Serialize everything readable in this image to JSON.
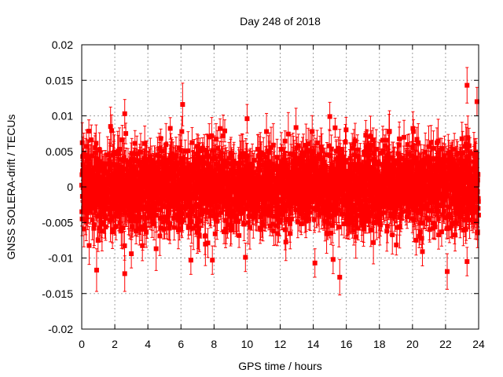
{
  "chart_data": {
    "type": "scatter",
    "title": "Day 248 of 2018",
    "xlabel": "GPS time / hours",
    "ylabel": "GNSS SOLERA-drift / TECUs",
    "xlim": [
      0,
      24
    ],
    "ylim": [
      -0.02,
      0.02
    ],
    "xticks": [
      0,
      2,
      4,
      6,
      8,
      10,
      12,
      14,
      16,
      18,
      20,
      22,
      24
    ],
    "xtick_labels": [
      "0",
      "2",
      "4",
      "6",
      "8",
      "10",
      "12",
      "14",
      "16",
      "18",
      "20",
      "22",
      "24"
    ],
    "yticks": [
      -0.02,
      -0.015,
      -0.01,
      -0.005,
      0,
      0.005,
      0.01,
      0.015,
      0.02
    ],
    "ytick_labels": [
      "-0.02",
      "-0.015",
      "-0.01",
      "-0.005",
      "0",
      "0.005",
      "0.01",
      "0.015",
      "0.02"
    ],
    "grid": true,
    "series_color": "#ff0000",
    "marker": "square",
    "error_bars": true,
    "noise_model": {
      "sample_interval_hours": 0.0083,
      "mean": 0.0,
      "std": 0.0028,
      "typical_error": 0.0022
    },
    "outliers": [
      {
        "x": 0.9,
        "y": -0.0117,
        "err": 0.003
      },
      {
        "x": 2.6,
        "y": -0.0122,
        "err": 0.0025
      },
      {
        "x": 2.6,
        "y": 0.0103,
        "err": 0.002
      },
      {
        "x": 6.1,
        "y": 0.0116,
        "err": 0.003
      },
      {
        "x": 6.6,
        "y": -0.0103,
        "err": 0.002
      },
      {
        "x": 9.9,
        "y": -0.0099,
        "err": 0.002
      },
      {
        "x": 10.0,
        "y": 0.0096,
        "err": 0.002
      },
      {
        "x": 14.1,
        "y": -0.0107,
        "err": 0.002
      },
      {
        "x": 15.0,
        "y": 0.0099,
        "err": 0.002
      },
      {
        "x": 15.6,
        "y": -0.0127,
        "err": 0.0025
      },
      {
        "x": 15.2,
        "y": -0.0102,
        "err": 0.002
      },
      {
        "x": 22.1,
        "y": -0.0119,
        "err": 0.0025
      },
      {
        "x": 23.3,
        "y": -0.0105,
        "err": 0.002
      },
      {
        "x": 23.3,
        "y": 0.0143,
        "err": 0.0025
      },
      {
        "x": 23.9,
        "y": 0.012,
        "err": 0.002
      },
      {
        "x": 3.0,
        "y": -0.0094,
        "err": 0.002
      },
      {
        "x": 7.9,
        "y": -0.0103,
        "err": 0.002
      },
      {
        "x": 20.6,
        "y": -0.0091,
        "err": 0.002
      }
    ]
  }
}
